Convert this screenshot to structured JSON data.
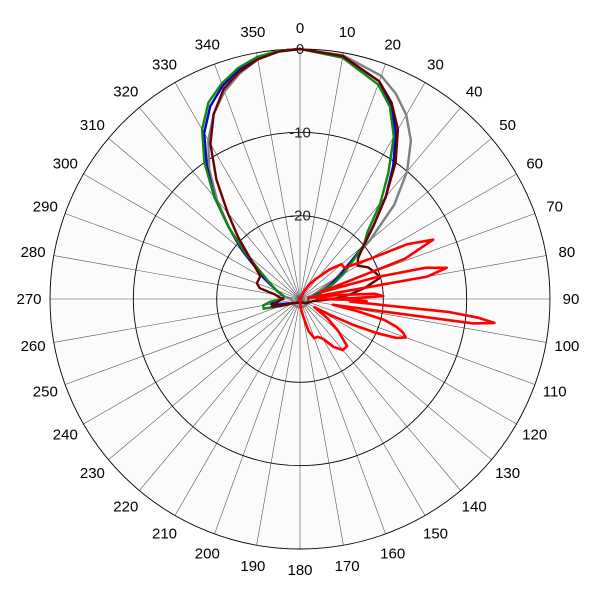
{
  "chart_data": {
    "type": "polar-line",
    "title": "",
    "angle_unit": "degrees",
    "angle_direction": "clockwise",
    "zero_at": "top",
    "angle_ticks": [
      0,
      10,
      20,
      30,
      40,
      50,
      60,
      70,
      80,
      90,
      100,
      110,
      120,
      130,
      140,
      150,
      160,
      170,
      180,
      190,
      200,
      210,
      220,
      230,
      240,
      250,
      260,
      270,
      280,
      290,
      300,
      310,
      320,
      330,
      340,
      350
    ],
    "radial_ticks": [
      0,
      -10,
      -20
    ],
    "radial_range": [
      -30,
      0
    ],
    "grid": true,
    "series": [
      {
        "color": "#808080",
        "theta": [
          0,
          10,
          20,
          25,
          30,
          35,
          40,
          45,
          50,
          60,
          70,
          80,
          90,
          100,
          110,
          120,
          140,
          160,
          180,
          200,
          220,
          240,
          260,
          270,
          280,
          290,
          300,
          310,
          315,
          320,
          325,
          330,
          335,
          340,
          345,
          350,
          355,
          360
        ],
        "values": [
          0,
          -0.3,
          -1.5,
          -2.8,
          -4.5,
          -6.8,
          -10,
          -14,
          -19,
          -25,
          -28,
          -29,
          -29,
          -29,
          -29,
          -29,
          -29,
          -29,
          -29,
          -29,
          -29,
          -29,
          -29,
          -29,
          -28,
          -27,
          -25,
          -21,
          -18,
          -14.5,
          -11,
          -8,
          -5.5,
          -3.5,
          -2,
          -0.8,
          -0.2,
          0
        ]
      },
      {
        "color": "#0000cc",
        "theta": [
          0,
          10,
          20,
          25,
          30,
          35,
          40,
          45,
          50,
          55,
          60,
          65,
          70,
          80,
          90,
          100,
          120,
          150,
          180,
          210,
          240,
          250,
          255,
          260,
          265,
          270,
          280,
          290,
          300,
          310,
          315,
          320,
          325,
          330,
          335,
          340,
          345,
          350,
          355,
          360
        ],
        "values": [
          0,
          -0.4,
          -2.2,
          -4.2,
          -7,
          -10.5,
          -14,
          -17.5,
          -20,
          -23,
          -24.5,
          -26,
          -27,
          -28.5,
          -29,
          -29,
          -29,
          -29.5,
          -29.5,
          -29.5,
          -29,
          -28.5,
          -27.5,
          -26.5,
          -27,
          -28,
          -28,
          -27,
          -25,
          -21,
          -18,
          -14,
          -10.5,
          -7,
          -4.5,
          -2.8,
          -1.5,
          -0.6,
          -0.1,
          0
        ]
      },
      {
        "color": "#118811",
        "theta": [
          0,
          10,
          20,
          25,
          30,
          35,
          40,
          45,
          50,
          55,
          60,
          65,
          70,
          75,
          80,
          90,
          100,
          120,
          150,
          180,
          210,
          240,
          250,
          255,
          260,
          265,
          270,
          280,
          290,
          300,
          310,
          315,
          320,
          325,
          330,
          335,
          340,
          345,
          350,
          355,
          360
        ],
        "values": [
          0,
          -0.6,
          -2.6,
          -4.5,
          -7.5,
          -11.5,
          -15,
          -18.5,
          -20,
          -22.5,
          -24,
          -25.5,
          -27,
          -27.5,
          -28.5,
          -29,
          -29,
          -29,
          -29.5,
          -29.5,
          -29.5,
          -29,
          -27.5,
          -25.5,
          -25.5,
          -26.5,
          -28,
          -28,
          -27,
          -25.5,
          -21.5,
          -18,
          -14,
          -10,
          -6.5,
          -4,
          -2.5,
          -1.3,
          -0.5,
          -0.1,
          0
        ]
      },
      {
        "color": "#6b0000",
        "theta": [
          0,
          10,
          20,
          25,
          30,
          35,
          40,
          45,
          50,
          55,
          60,
          65,
          70,
          75,
          80,
          85,
          90,
          100,
          120,
          150,
          180,
          210,
          240,
          250,
          255,
          260,
          265,
          270,
          275,
          280,
          285,
          290,
          300,
          310,
          315,
          320,
          325,
          330,
          335,
          340,
          345,
          350,
          355,
          360
        ],
        "values": [
          0,
          -0.4,
          -2.2,
          -4,
          -6.5,
          -10,
          -14,
          -17.5,
          -20,
          -21.5,
          -22,
          -21,
          -20.5,
          -20,
          -22,
          -24,
          -26,
          -28.5,
          -29,
          -29.5,
          -29.5,
          -29.5,
          -29,
          -27.5,
          -26.5,
          -27,
          -27.5,
          -28,
          -27.5,
          -27,
          -25,
          -24.5,
          -24.5,
          -22,
          -19.5,
          -16.5,
          -12.5,
          -8.5,
          -5.5,
          -3.2,
          -1.8,
          -0.8,
          -0.2,
          0
        ]
      },
      {
        "color": "#ff0000",
        "theta": [
          0,
          15,
          22,
          27,
          32,
          38,
          45,
          50,
          55,
          60,
          63,
          66,
          69,
          72,
          74,
          76,
          78,
          80,
          82,
          84,
          86,
          88,
          89,
          90,
          91,
          92,
          93,
          95,
          96,
          97,
          98,
          100,
          102,
          104,
          106,
          108,
          110,
          112,
          114,
          116,
          118,
          120,
          125,
          130,
          135,
          140,
          145,
          150,
          155,
          160,
          165,
          170,
          175,
          180,
          190,
          220,
          250,
          270,
          300,
          330,
          360
        ],
        "values": [
          -30,
          -30,
          -30,
          -29,
          -28,
          -27,
          -25,
          -23.5,
          -23.5,
          -20.5,
          -15.5,
          -12.5,
          -16.5,
          -27.5,
          -20.5,
          -14.5,
          -12,
          -14.5,
          -29,
          -25.5,
          -21,
          -20,
          -23.5,
          -28,
          -23,
          -22,
          -24,
          -12,
          -8.5,
          -6.5,
          -9,
          -26,
          -23,
          -19.5,
          -18,
          -17,
          -16.5,
          -17.5,
          -20,
          -23,
          -26,
          -28,
          -26,
          -24,
          -22,
          -22,
          -23,
          -24.5,
          -25,
          -25,
          -26,
          -28,
          -29,
          -30,
          -30,
          -30,
          -30,
          -30,
          -30,
          -30,
          -30
        ]
      }
    ]
  }
}
